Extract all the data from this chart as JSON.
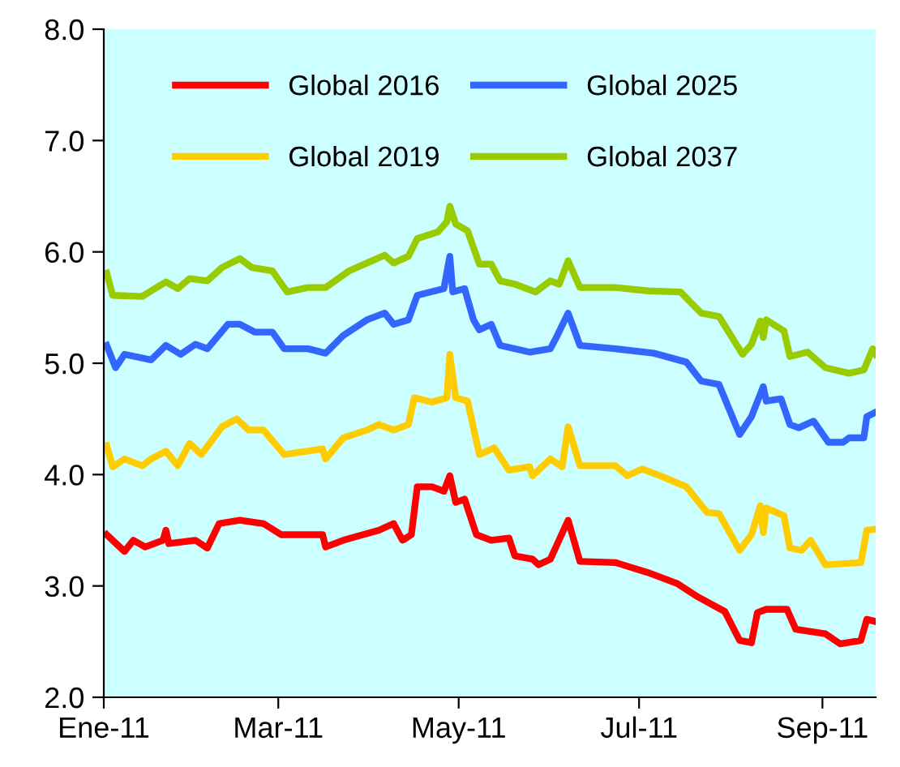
{
  "chart_data": {
    "type": "line",
    "xlim": [
      "2011-01-01",
      "2011-09-19"
    ],
    "xticks": [
      {
        "value": "2011-01-01",
        "label": "Ene-11"
      },
      {
        "value": "2011-03-01",
        "label": "Mar-11"
      },
      {
        "value": "2011-05-01",
        "label": "May-11"
      },
      {
        "value": "2011-07-01",
        "label": "Jul-11"
      },
      {
        "value": "2011-09-01",
        "label": "Sep-11"
      }
    ],
    "ylim": [
      2,
      8
    ],
    "yticks": [
      {
        "value": 2,
        "label": "2.0"
      },
      {
        "value": 3,
        "label": "3.0"
      },
      {
        "value": 4,
        "label": "4.0"
      },
      {
        "value": 5,
        "label": "5.0"
      },
      {
        "value": 6,
        "label": "6.0"
      },
      {
        "value": 7,
        "label": "7.0"
      },
      {
        "value": 8,
        "label": "8.0"
      }
    ],
    "grid": false,
    "legend": "top left",
    "marker": "none",
    "line_style": "solid",
    "series": [
      {
        "name": "Global 2016",
        "color": "#ff0000",
        "x": [
          "2011-01-02",
          "2011-01-04",
          "2011-01-08",
          "2011-01-11",
          "2011-01-15",
          "2011-01-21",
          "2011-01-22",
          "2011-01-23",
          "2011-02-01",
          "2011-02-05",
          "2011-02-09",
          "2011-02-16",
          "2011-02-24",
          "2011-03-02",
          "2011-03-16",
          "2011-03-17",
          "2011-03-23",
          "2011-04-04",
          "2011-04-09",
          "2011-04-12",
          "2011-04-15",
          "2011-04-17",
          "2011-04-22",
          "2011-04-26",
          "2011-04-28",
          "2011-04-30",
          "2011-05-03",
          "2011-05-07",
          "2011-05-12",
          "2011-05-18",
          "2011-05-20",
          "2011-05-26",
          "2011-05-28",
          "2011-06-01",
          "2011-06-07",
          "2011-06-11",
          "2011-06-23",
          "2011-07-04",
          "2011-07-14",
          "2011-07-21",
          "2011-07-30",
          "2011-08-04",
          "2011-08-08",
          "2011-08-10",
          "2011-08-13",
          "2011-08-20",
          "2011-08-23",
          "2011-09-02",
          "2011-09-07",
          "2011-09-14",
          "2011-09-16",
          "2011-09-19"
        ],
        "values": [
          3.46,
          3.41,
          3.31,
          3.41,
          3.35,
          3.41,
          3.5,
          3.38,
          3.41,
          3.34,
          3.56,
          3.59,
          3.56,
          3.46,
          3.46,
          3.35,
          3.41,
          3.5,
          3.56,
          3.41,
          3.46,
          3.89,
          3.89,
          3.85,
          3.99,
          3.75,
          3.78,
          3.46,
          3.41,
          3.43,
          3.27,
          3.24,
          3.19,
          3.24,
          3.59,
          3.22,
          3.21,
          3.12,
          3.02,
          2.9,
          2.77,
          2.51,
          2.49,
          2.76,
          2.79,
          2.79,
          2.61,
          2.57,
          2.48,
          2.51,
          2.7,
          2.68
        ]
      },
      {
        "name": "Global 2019",
        "color": "#ffcc00",
        "x": [
          "2011-01-02",
          "2011-01-04",
          "2011-01-08",
          "2011-01-14",
          "2011-01-17",
          "2011-01-22",
          "2011-01-26",
          "2011-01-30",
          "2011-02-03",
          "2011-02-10",
          "2011-02-15",
          "2011-02-19",
          "2011-02-24",
          "2011-03-03",
          "2011-03-16",
          "2011-03-17",
          "2011-03-23",
          "2011-03-31",
          "2011-04-04",
          "2011-04-09",
          "2011-04-14",
          "2011-04-16",
          "2011-04-22",
          "2011-04-27",
          "2011-04-28",
          "2011-04-30",
          "2011-05-04",
          "2011-05-08",
          "2011-05-13",
          "2011-05-18",
          "2011-05-25",
          "2011-05-26",
          "2011-06-01",
          "2011-06-05",
          "2011-06-07",
          "2011-06-11",
          "2011-06-23",
          "2011-06-27",
          "2011-07-02",
          "2011-07-08",
          "2011-07-17",
          "2011-07-24",
          "2011-07-28",
          "2011-08-04",
          "2011-08-08",
          "2011-08-11",
          "2011-08-12",
          "2011-08-13",
          "2011-08-19",
          "2011-08-21",
          "2011-08-25",
          "2011-08-28",
          "2011-09-02",
          "2011-09-14",
          "2011-09-16",
          "2011-09-19"
        ],
        "values": [
          4.26,
          4.07,
          4.14,
          4.08,
          4.14,
          4.21,
          4.08,
          4.28,
          4.18,
          4.43,
          4.5,
          4.4,
          4.4,
          4.18,
          4.23,
          4.14,
          4.33,
          4.4,
          4.45,
          4.4,
          4.45,
          4.69,
          4.65,
          4.69,
          5.08,
          4.69,
          4.66,
          4.18,
          4.24,
          4.04,
          4.07,
          3.99,
          4.14,
          4.07,
          4.43,
          4.08,
          4.08,
          3.99,
          4.05,
          3.99,
          3.89,
          3.66,
          3.65,
          3.32,
          3.46,
          3.72,
          3.48,
          3.7,
          3.63,
          3.34,
          3.32,
          3.41,
          3.19,
          3.21,
          3.5,
          3.51
        ]
      },
      {
        "name": "Global 2025",
        "color": "#3366ff",
        "x": [
          "2011-01-02",
          "2011-01-05",
          "2011-01-08",
          "2011-01-17",
          "2011-01-22",
          "2011-01-27",
          "2011-02-01",
          "2011-02-05",
          "2011-02-12",
          "2011-02-16",
          "2011-02-21",
          "2011-02-27",
          "2011-03-03",
          "2011-03-11",
          "2011-03-17",
          "2011-03-23",
          "2011-03-31",
          "2011-04-06",
          "2011-04-09",
          "2011-04-14",
          "2011-04-17",
          "2011-04-26",
          "2011-04-28",
          "2011-04-29",
          "2011-05-03",
          "2011-05-06",
          "2011-05-08",
          "2011-05-12",
          "2011-05-15",
          "2011-05-25",
          "2011-06-01",
          "2011-06-03",
          "2011-06-07",
          "2011-06-11",
          "2011-06-23",
          "2011-07-06",
          "2011-07-17",
          "2011-07-22",
          "2011-07-28",
          "2011-08-04",
          "2011-08-08",
          "2011-08-12",
          "2011-08-13",
          "2011-08-18",
          "2011-08-21",
          "2011-08-24",
          "2011-08-29",
          "2011-09-03",
          "2011-09-08",
          "2011-09-10",
          "2011-09-15",
          "2011-09-16",
          "2011-09-19"
        ],
        "values": [
          5.16,
          4.96,
          5.08,
          5.03,
          5.16,
          5.08,
          5.17,
          5.13,
          5.35,
          5.35,
          5.28,
          5.28,
          5.13,
          5.13,
          5.09,
          5.25,
          5.39,
          5.45,
          5.35,
          5.39,
          5.61,
          5.67,
          5.96,
          5.64,
          5.67,
          5.39,
          5.3,
          5.35,
          5.16,
          5.1,
          5.13,
          5.23,
          5.45,
          5.16,
          5.13,
          5.09,
          5.01,
          4.84,
          4.81,
          4.36,
          4.52,
          4.79,
          4.66,
          4.68,
          4.45,
          4.42,
          4.48,
          4.29,
          4.29,
          4.33,
          4.33,
          4.52,
          4.56
        ]
      },
      {
        "name": "Global 2037",
        "color": "#99cc00",
        "x": [
          "2011-01-02",
          "2011-01-04",
          "2011-01-14",
          "2011-01-17",
          "2011-01-22",
          "2011-01-26",
          "2011-01-30",
          "2011-02-05",
          "2011-02-10",
          "2011-02-16",
          "2011-02-20",
          "2011-02-27",
          "2011-03-04",
          "2011-03-11",
          "2011-03-17",
          "2011-03-25",
          "2011-03-31",
          "2011-04-06",
          "2011-04-09",
          "2011-04-14",
          "2011-04-17",
          "2011-04-24",
          "2011-04-27",
          "2011-04-28",
          "2011-04-30",
          "2011-05-04",
          "2011-05-08",
          "2011-05-12",
          "2011-05-15",
          "2011-05-20",
          "2011-05-27",
          "2011-06-01",
          "2011-06-04",
          "2011-06-07",
          "2011-06-11",
          "2011-06-23",
          "2011-07-04",
          "2011-07-15",
          "2011-07-22",
          "2011-07-28",
          "2011-08-05",
          "2011-08-08",
          "2011-08-11",
          "2011-08-12",
          "2011-08-13",
          "2011-08-19",
          "2011-08-21",
          "2011-08-27",
          "2011-09-02",
          "2011-09-10",
          "2011-09-15",
          "2011-09-18",
          "2011-09-19"
        ],
        "values": [
          5.81,
          5.61,
          5.6,
          5.65,
          5.73,
          5.67,
          5.76,
          5.74,
          5.86,
          5.94,
          5.86,
          5.83,
          5.64,
          5.68,
          5.68,
          5.83,
          5.9,
          5.97,
          5.9,
          5.96,
          6.12,
          6.18,
          6.27,
          6.41,
          6.25,
          6.19,
          5.89,
          5.89,
          5.74,
          5.71,
          5.64,
          5.74,
          5.71,
          5.92,
          5.68,
          5.68,
          5.65,
          5.64,
          5.45,
          5.42,
          5.08,
          5.17,
          5.38,
          5.23,
          5.39,
          5.29,
          5.06,
          5.1,
          4.96,
          4.91,
          4.94,
          5.13,
          5.08
        ]
      }
    ]
  }
}
